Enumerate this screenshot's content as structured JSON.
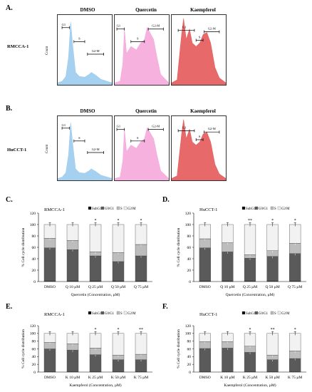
{
  "panels": {
    "A": "A.",
    "B": "B.",
    "C": "C.",
    "D": "D.",
    "E": "E.",
    "F": "F."
  },
  "flow": {
    "column_titles": [
      "DMSO",
      "Quercetin",
      "Kaempferol"
    ],
    "rows": [
      {
        "label": "RMCCA-1",
        "count_label": "Count",
        "gates": [
          "G1",
          "S",
          "G2-M"
        ]
      },
      {
        "label": "HuCCT-1",
        "count_label": "Count",
        "gates": [
          "G1",
          "S",
          "G2-M"
        ]
      }
    ],
    "colors": {
      "dmso": "#9ccbee",
      "quercetin": "#f5a8dc",
      "kaempferol": "#e4595a"
    }
  },
  "chart_data": [
    {
      "type": "bar",
      "panel": "C",
      "title": "RMCCA-1",
      "categories": [
        "DMSO",
        "Q 10 µM",
        "Q 25 µM",
        "Q 50 µM",
        "Q 75 µM"
      ],
      "series": [
        {
          "name": "SubG1",
          "values": [
            1,
            1,
            1,
            1,
            1
          ]
        },
        {
          "name": "G0/G1",
          "values": [
            58,
            55,
            44,
            34,
            44
          ]
        },
        {
          "name": "S",
          "values": [
            17,
            16,
            7,
            16,
            20
          ]
        },
        {
          "name": "G2/M",
          "values": [
            24,
            28,
            48,
            49,
            35
          ]
        }
      ],
      "significance": [
        "",
        "",
        "*",
        "*",
        "*"
      ],
      "ylabel": "% Cell cycle distribution",
      "xlabel": "Quercetin (Concentration, µM)",
      "ylim": [
        0,
        120
      ],
      "yticks": [
        "0",
        "20",
        "40",
        "60",
        "80",
        "100",
        "120"
      ],
      "stacked": true,
      "legend": "top-right"
    },
    {
      "type": "bar",
      "panel": "D",
      "title": "HuCCT-1",
      "categories": [
        "DMSO",
        "Q 10 µM",
        "Q 25 µM",
        "Q 50 µM",
        "Q 75 µM"
      ],
      "series": [
        {
          "name": "SubG1",
          "values": [
            1,
            1,
            1,
            1,
            1
          ]
        },
        {
          "name": "G0/G1",
          "values": [
            58,
            51,
            40,
            43,
            48
          ]
        },
        {
          "name": "S",
          "values": [
            16,
            16,
            6,
            10,
            18
          ]
        },
        {
          "name": "G2/M",
          "values": [
            25,
            32,
            53,
            46,
            33
          ]
        }
      ],
      "significance": [
        "",
        "",
        "**",
        "*",
        "*"
      ],
      "ylabel": "% Cell cycle distribution",
      "xlabel": "Quercetin (Concentration, µM)",
      "ylim": [
        0,
        120
      ],
      "yticks": [
        "0",
        "20",
        "40",
        "60",
        "80",
        "100",
        "120"
      ],
      "stacked": true,
      "legend": "top-right"
    },
    {
      "type": "bar",
      "panel": "E",
      "title": "RMCCA-1",
      "categories": [
        "DMSO",
        "K 10 µM",
        "K 25 µM",
        "K 50 µM",
        "K 75 µM"
      ],
      "series": [
        {
          "name": "SubG1",
          "values": [
            1,
            1,
            1,
            1,
            1
          ]
        },
        {
          "name": "G0/G1",
          "values": [
            59,
            56,
            44,
            31,
            31
          ]
        },
        {
          "name": "S",
          "values": [
            17,
            16,
            17,
            12,
            14
          ]
        },
        {
          "name": "G2/M",
          "values": [
            23,
            27,
            38,
            56,
            54
          ]
        }
      ],
      "significance": [
        "",
        "",
        "*",
        "*",
        "**"
      ],
      "ylabel": "% Cell cycle distribution",
      "xlabel": "Kaempferol (Concentration, µM)",
      "ylim": [
        0,
        120
      ],
      "yticks": [
        "0",
        "20",
        "40",
        "60",
        "80",
        "100",
        "120"
      ],
      "stacked": true,
      "legend": "top-right"
    },
    {
      "type": "bar",
      "panel": "F",
      "title": "HuCCT-1",
      "categories": [
        "DMSO",
        "K 10 µM",
        "K 25 µM",
        "K 50 µM",
        "K 75 µM"
      ],
      "series": [
        {
          "name": "SubG1",
          "values": [
            1,
            1,
            1,
            1,
            1
          ]
        },
        {
          "name": "G0/G1",
          "values": [
            60,
            61,
            50,
            31,
            34
          ]
        },
        {
          "name": "S",
          "values": [
            18,
            17,
            16,
            12,
            20
          ]
        },
        {
          "name": "G2/M",
          "values": [
            21,
            21,
            33,
            56,
            45
          ]
        }
      ],
      "significance": [
        "",
        "",
        "*",
        "**",
        "*"
      ],
      "ylabel": "% Cell cycle distribution",
      "xlabel": "Kaempferol (Concentration, µM)",
      "ylim": [
        0,
        120
      ],
      "yticks": [
        "0",
        "20",
        "40",
        "60",
        "80",
        "100",
        "120"
      ],
      "stacked": true,
      "legend": "top-right"
    }
  ],
  "series_colors": {
    "SubG1": "#000000",
    "G0/G1": "#5a5a5a",
    "S": "#bdbdbd",
    "G2/M": "#f2f2f2"
  }
}
